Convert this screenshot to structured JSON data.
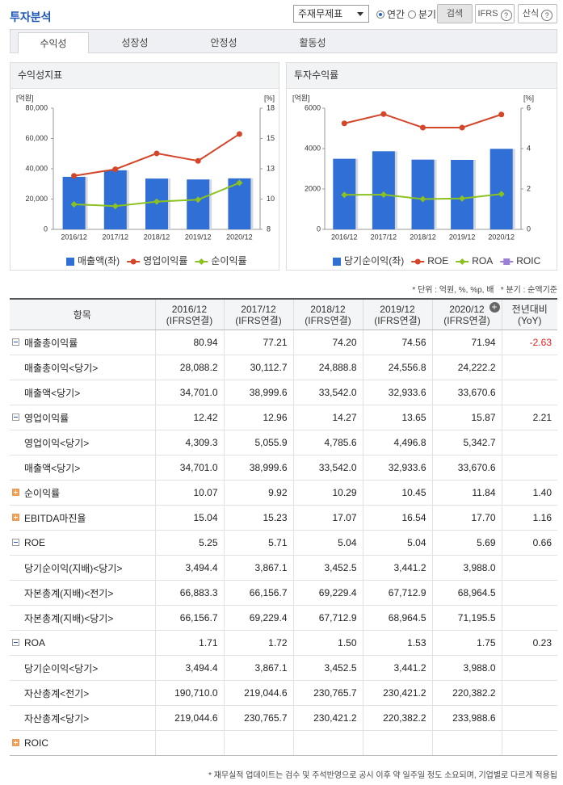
{
  "header": {
    "title": "투자분석",
    "filter": "주재무제표",
    "period_options": [
      "연간",
      "분기"
    ],
    "search": "검색",
    "ifrs": "IFRS",
    "formula": "산식"
  },
  "tabs": [
    "수익성",
    "성장성",
    "안정성",
    "활동성"
  ],
  "chart_data": [
    {
      "type": "combo",
      "title": "수익성지표",
      "y_unit": "[억원]",
      "y2_unit": "[%]",
      "categories": [
        "2016/12",
        "2017/12",
        "2018/12",
        "2019/12",
        "2020/12"
      ],
      "ylim": [
        0,
        80000
      ],
      "yticks": [
        0,
        {
          "value": 20000,
          "label": "20,000"
        },
        {
          "value": 40000,
          "label": "40,000"
        },
        {
          "value": 60000,
          "label": "60,000"
        },
        {
          "value": 80000,
          "label": "80,000"
        }
      ],
      "y2lim": [
        8,
        18
      ],
      "y2ticks": [
        8,
        {
          "value": 10.5,
          "label": "10"
        },
        13,
        {
          "value": 15.5,
          "label": "15"
        },
        18
      ],
      "series": [
        {
          "name": "매출액(좌)",
          "kind": "bar",
          "color": "#2f6fd6",
          "marker": "square",
          "values": [
            34701.0,
            38999.6,
            33542.0,
            32933.6,
            33670.6
          ]
        },
        {
          "name": "영업이익률",
          "kind": "line",
          "axis": "y2",
          "color": "#d4462a",
          "marker": "circle",
          "values": [
            12.42,
            12.96,
            14.27,
            13.65,
            15.87
          ]
        },
        {
          "name": "순이익률",
          "kind": "line",
          "axis": "y2",
          "color": "#8cc21f",
          "marker": "diamond",
          "values": [
            10.07,
            9.92,
            10.29,
            10.45,
            11.84
          ]
        }
      ]
    },
    {
      "type": "combo",
      "title": "투자수익률",
      "y_unit": "[억원]",
      "y2_unit": "[%]",
      "categories": [
        "2016/12",
        "2017/12",
        "2018/12",
        "2019/12",
        "2020/12"
      ],
      "ylim": [
        0,
        6000
      ],
      "yticks": [
        0,
        2000,
        4000,
        6000
      ],
      "y2lim": [
        0,
        6
      ],
      "y2ticks": [
        0,
        2,
        4,
        6
      ],
      "series": [
        {
          "name": "당기순이익(좌)",
          "kind": "bar",
          "color": "#2f6fd6",
          "marker": "square",
          "values": [
            3494.4,
            3867.1,
            3452.5,
            3441.2,
            3988.0
          ]
        },
        {
          "name": "ROE",
          "kind": "line",
          "axis": "y2",
          "color": "#d4462a",
          "marker": "circle",
          "values": [
            5.25,
            5.71,
            5.04,
            5.04,
            5.69
          ]
        },
        {
          "name": "ROA",
          "kind": "line",
          "axis": "y2",
          "color": "#8cc21f",
          "marker": "diamond",
          "values": [
            1.71,
            1.72,
            1.5,
            1.53,
            1.75
          ]
        },
        {
          "name": "ROIC",
          "kind": "line",
          "axis": "y2",
          "color": "#9b80d6",
          "marker": "square",
          "values": [
            null,
            null,
            null,
            null,
            null
          ]
        }
      ]
    }
  ],
  "notes": {
    "unit": "* 단위 : 억원, %, %p, 배",
    "quarter": "* 분기 : 순액기준",
    "footer": "* 재무실적 업데이트는 검수 및 주석반영으로 공시 이후 약 일주일 정도 소요되며, 기업별로 다르게 적용됩"
  },
  "table": {
    "head": {
      "item": "항목",
      "periods": [
        {
          "date": "2016/12",
          "basis": "(IFRS연결)"
        },
        {
          "date": "2017/12",
          "basis": "(IFRS연결)"
        },
        {
          "date": "2018/12",
          "basis": "(IFRS연결)"
        },
        {
          "date": "2019/12",
          "basis": "(IFRS연결)"
        },
        {
          "date": "2020/12",
          "basis": "(IFRS연결)"
        }
      ],
      "yoy": {
        "date": "전년대비",
        "basis": "(YoY)"
      }
    },
    "rows": [
      {
        "label": "매출총이익률",
        "icon": "minus",
        "values": [
          "80.94",
          "77.21",
          "74.20",
          "74.56",
          "71.94"
        ],
        "yoy": "-2.63"
      },
      {
        "label": "매출총이익<당기>",
        "values": [
          "28,088.2",
          "30,112.7",
          "24,888.8",
          "24,556.8",
          "24,222.2"
        ]
      },
      {
        "label": "매출액<당기>",
        "values": [
          "34,701.0",
          "38,999.6",
          "33,542.0",
          "32,933.6",
          "33,670.6"
        ]
      },
      {
        "label": "영업이익률",
        "icon": "minus",
        "values": [
          "12.42",
          "12.96",
          "14.27",
          "13.65",
          "15.87"
        ],
        "yoy": "2.21"
      },
      {
        "label": "영업이익<당기>",
        "values": [
          "4,309.3",
          "5,055.9",
          "4,785.6",
          "4,496.8",
          "5,342.7"
        ]
      },
      {
        "label": "매출액<당기>",
        "values": [
          "34,701.0",
          "38,999.6",
          "33,542.0",
          "32,933.6",
          "33,670.6"
        ]
      },
      {
        "label": "순이익률",
        "icon": "plus",
        "values": [
          "10.07",
          "9.92",
          "10.29",
          "10.45",
          "11.84"
        ],
        "yoy": "1.40"
      },
      {
        "label": "EBITDA마진율",
        "icon": "plus",
        "values": [
          "15.04",
          "15.23",
          "17.07",
          "16.54",
          "17.70"
        ],
        "yoy": "1.16"
      },
      {
        "label": "ROE",
        "icon": "minus",
        "values": [
          "5.25",
          "5.71",
          "5.04",
          "5.04",
          "5.69"
        ],
        "yoy": "0.66"
      },
      {
        "label": "당기순이익(지배)<당기>",
        "values": [
          "3,494.4",
          "3,867.1",
          "3,452.5",
          "3,441.2",
          "3,988.0"
        ]
      },
      {
        "label": "자본총계(지배)<전기>",
        "values": [
          "66,883.3",
          "66,156.7",
          "69,229.4",
          "67,712.9",
          "68,964.5"
        ]
      },
      {
        "label": "자본총계(지배)<당기>",
        "values": [
          "66,156.7",
          "69,229.4",
          "67,712.9",
          "68,964.5",
          "71,195.5"
        ]
      },
      {
        "label": "ROA",
        "icon": "minus",
        "values": [
          "1.71",
          "1.72",
          "1.50",
          "1.53",
          "1.75"
        ],
        "yoy": "0.23"
      },
      {
        "label": "당기순이익<당기>",
        "values": [
          "3,494.4",
          "3,867.1",
          "3,452.5",
          "3,441.2",
          "3,988.0"
        ]
      },
      {
        "label": "자산총계<전기>",
        "values": [
          "190,710.0",
          "219,044.6",
          "230,765.7",
          "230,421.2",
          "220,382.2"
        ]
      },
      {
        "label": "자산총계<당기>",
        "values": [
          "219,044.6",
          "230,765.7",
          "230,421.2",
          "220,382.2",
          "233,988.6"
        ]
      },
      {
        "label": "ROIC",
        "icon": "plus"
      }
    ]
  }
}
